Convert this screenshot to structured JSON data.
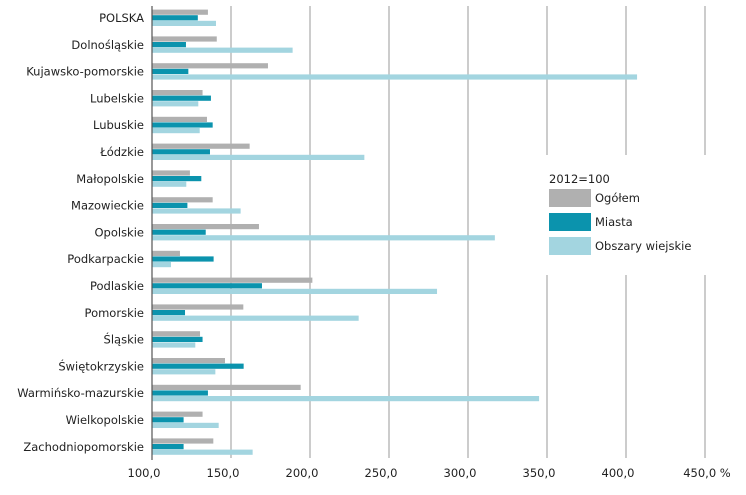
{
  "chart_data": {
    "type": "bar",
    "orientation": "horizontal",
    "categories": [
      "POLSKA",
      "Dolnośląskie",
      "Kujawsko-pomorskie",
      "Lubelskie",
      "Lubuskie",
      "Łódzkie",
      "Małopolskie",
      "Mazowieckie",
      "Opolskie",
      "Podkarpackie",
      "Podlaskie",
      "Pomorskie",
      "Śląskie",
      "Świętokrzyskie",
      "Warmińsko-mazurskie",
      "Wielkopolskie",
      "Zachodniopomorskie"
    ],
    "series": [
      {
        "name": "Ogółem",
        "color": "#b0b0b0",
        "values": [
          135.4,
          141,
          173.4,
          132,
          134.8,
          161.8,
          124,
          138.4,
          167.7,
          117.7,
          201.5,
          157.8,
          130.4,
          146.2,
          194.1,
          132,
          138.8
        ]
      },
      {
        "name": "Miasta",
        "color": "#0b93ad",
        "values": [
          129,
          121.5,
          123,
          137.3,
          138.4,
          136.7,
          131.2,
          122.4,
          134,
          139,
          169.6,
          120.9,
          132,
          158,
          135.4,
          120,
          120
        ]
      },
      {
        "name": "Obszary wiejskie",
        "color": "#a3d5e0",
        "values": [
          140.5,
          189,
          407,
          129.3,
          130.2,
          234.4,
          121.7,
          156.1,
          317,
          112,
          280.4,
          230.8,
          127.4,
          140.1,
          345,
          142.2,
          163.7
        ]
      }
    ],
    "xlim": [
      100,
      450
    ],
    "xticks": [
      "100,0",
      "150,0",
      "200,0",
      "250,0",
      "300,0",
      "350,0",
      "400,0",
      "450,0 %"
    ],
    "xtick_values": [
      100,
      150,
      200,
      250,
      300,
      350,
      400,
      450
    ],
    "legend_title": "2012=100",
    "legend_placement": "right",
    "grid": true
  }
}
